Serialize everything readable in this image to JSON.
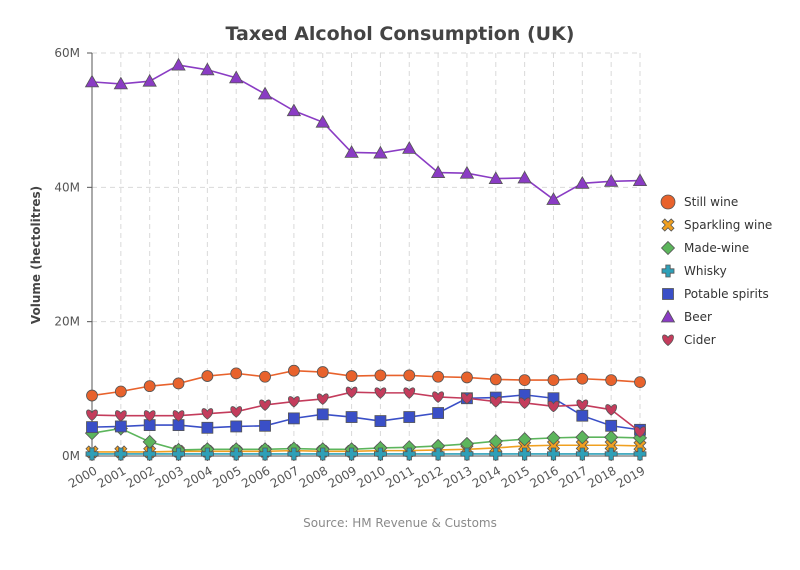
{
  "chart_data": {
    "type": "line",
    "title": "Taxed Alcohol Consumption (UK)",
    "xlabel": "",
    "ylabel": "Volume (hectolitres)",
    "source": "Source: HM Revenue & Customs",
    "categories": [
      "2000",
      "2001",
      "2002",
      "2003",
      "2004",
      "2005",
      "2006",
      "2007",
      "2008",
      "2009",
      "2010",
      "2011",
      "2012",
      "2013",
      "2014",
      "2015",
      "2016",
      "2017",
      "2018",
      "2019"
    ],
    "ylim": [
      0,
      60000000
    ],
    "yticks": [
      {
        "value": 0,
        "label": "0M"
      },
      {
        "value": 20000000,
        "label": "20M"
      },
      {
        "value": 40000000,
        "label": "40M"
      },
      {
        "value": 60000000,
        "label": "60M"
      }
    ],
    "grid": true,
    "legend_position": "right",
    "series": [
      {
        "name": "Still wine",
        "color": "#e8622c",
        "marker": "circle",
        "values": [
          9000000,
          9600000,
          10400000,
          10800000,
          11900000,
          12300000,
          11800000,
          12700000,
          12500000,
          11900000,
          12000000,
          12000000,
          11800000,
          11700000,
          11400000,
          11300000,
          11300000,
          11500000,
          11300000,
          11000000
        ]
      },
      {
        "name": "Sparkling wine",
        "color": "#f0a020",
        "marker": "x",
        "values": [
          600000,
          600000,
          600000,
          700000,
          700000,
          700000,
          700000,
          800000,
          700000,
          700000,
          800000,
          800000,
          900000,
          1000000,
          1200000,
          1500000,
          1600000,
          1600000,
          1600000,
          1500000
        ]
      },
      {
        "name": "Made-wine",
        "color": "#5cb55c",
        "marker": "diamond",
        "values": [
          3400000,
          4100000,
          2100000,
          900000,
          1000000,
          1000000,
          1000000,
          1100000,
          1000000,
          1000000,
          1200000,
          1300000,
          1500000,
          1800000,
          2200000,
          2500000,
          2700000,
          2800000,
          2800000,
          2700000
        ]
      },
      {
        "name": "Whisky",
        "color": "#2ea0b8",
        "marker": "plus",
        "values": [
          300000,
          300000,
          300000,
          300000,
          300000,
          300000,
          300000,
          300000,
          300000,
          300000,
          300000,
          300000,
          300000,
          300000,
          300000,
          300000,
          300000,
          300000,
          300000,
          300000
        ]
      },
      {
        "name": "Potable spirits",
        "color": "#3a4fc7",
        "marker": "square",
        "values": [
          4300000,
          4400000,
          4600000,
          4600000,
          4200000,
          4400000,
          4500000,
          5600000,
          6200000,
          5800000,
          5200000,
          5800000,
          6400000,
          8600000,
          8700000,
          9100000,
          8600000,
          6000000,
          4500000,
          3900000
        ]
      },
      {
        "name": "Beer",
        "color": "#8a3cc4",
        "marker": "triangle",
        "values": [
          55700000,
          55400000,
          55800000,
          58200000,
          57500000,
          56300000,
          53900000,
          51400000,
          49700000,
          45200000,
          45100000,
          45800000,
          42200000,
          42100000,
          41300000,
          41400000,
          38200000,
          40600000,
          40900000,
          41000000
        ]
      },
      {
        "name": "Cider",
        "color": "#c43c5c",
        "marker": "heart",
        "values": [
          6100000,
          6000000,
          6000000,
          6000000,
          6300000,
          6600000,
          7600000,
          8100000,
          8500000,
          9500000,
          9400000,
          9400000,
          8800000,
          8600000,
          8100000,
          7900000,
          7400000,
          7600000,
          6900000,
          3600000
        ]
      }
    ]
  }
}
